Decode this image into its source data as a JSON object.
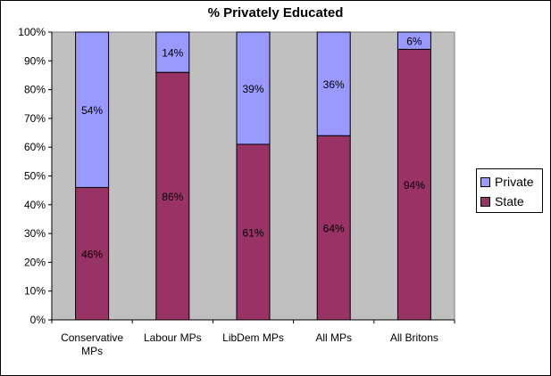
{
  "chart_data": {
    "type": "bar",
    "stacked": true,
    "percent": true,
    "title": "% Privately Educated",
    "categories": [
      [
        "Conservative",
        "MPs"
      ],
      [
        "Labour MPs"
      ],
      [
        "LibDem MPs"
      ],
      [
        "All MPs"
      ],
      [
        "All Britons"
      ]
    ],
    "series": [
      {
        "name": "State",
        "values": [
          46,
          86,
          61,
          64,
          94
        ],
        "labels": [
          "46%",
          "86%",
          "61%",
          "64%",
          "94%"
        ],
        "color": "#993366"
      },
      {
        "name": "Private",
        "values": [
          54,
          14,
          39,
          36,
          6
        ],
        "labels": [
          "54%",
          "14%",
          "39%",
          "36%",
          "6%"
        ],
        "color": "#9999FF"
      }
    ],
    "yticks": [
      "0%",
      "10%",
      "20%",
      "30%",
      "40%",
      "50%",
      "60%",
      "70%",
      "80%",
      "90%",
      "100%"
    ],
    "ylim": [
      0,
      100
    ],
    "grid": false,
    "legend": "right",
    "plot_background": "#C0C0C0"
  }
}
